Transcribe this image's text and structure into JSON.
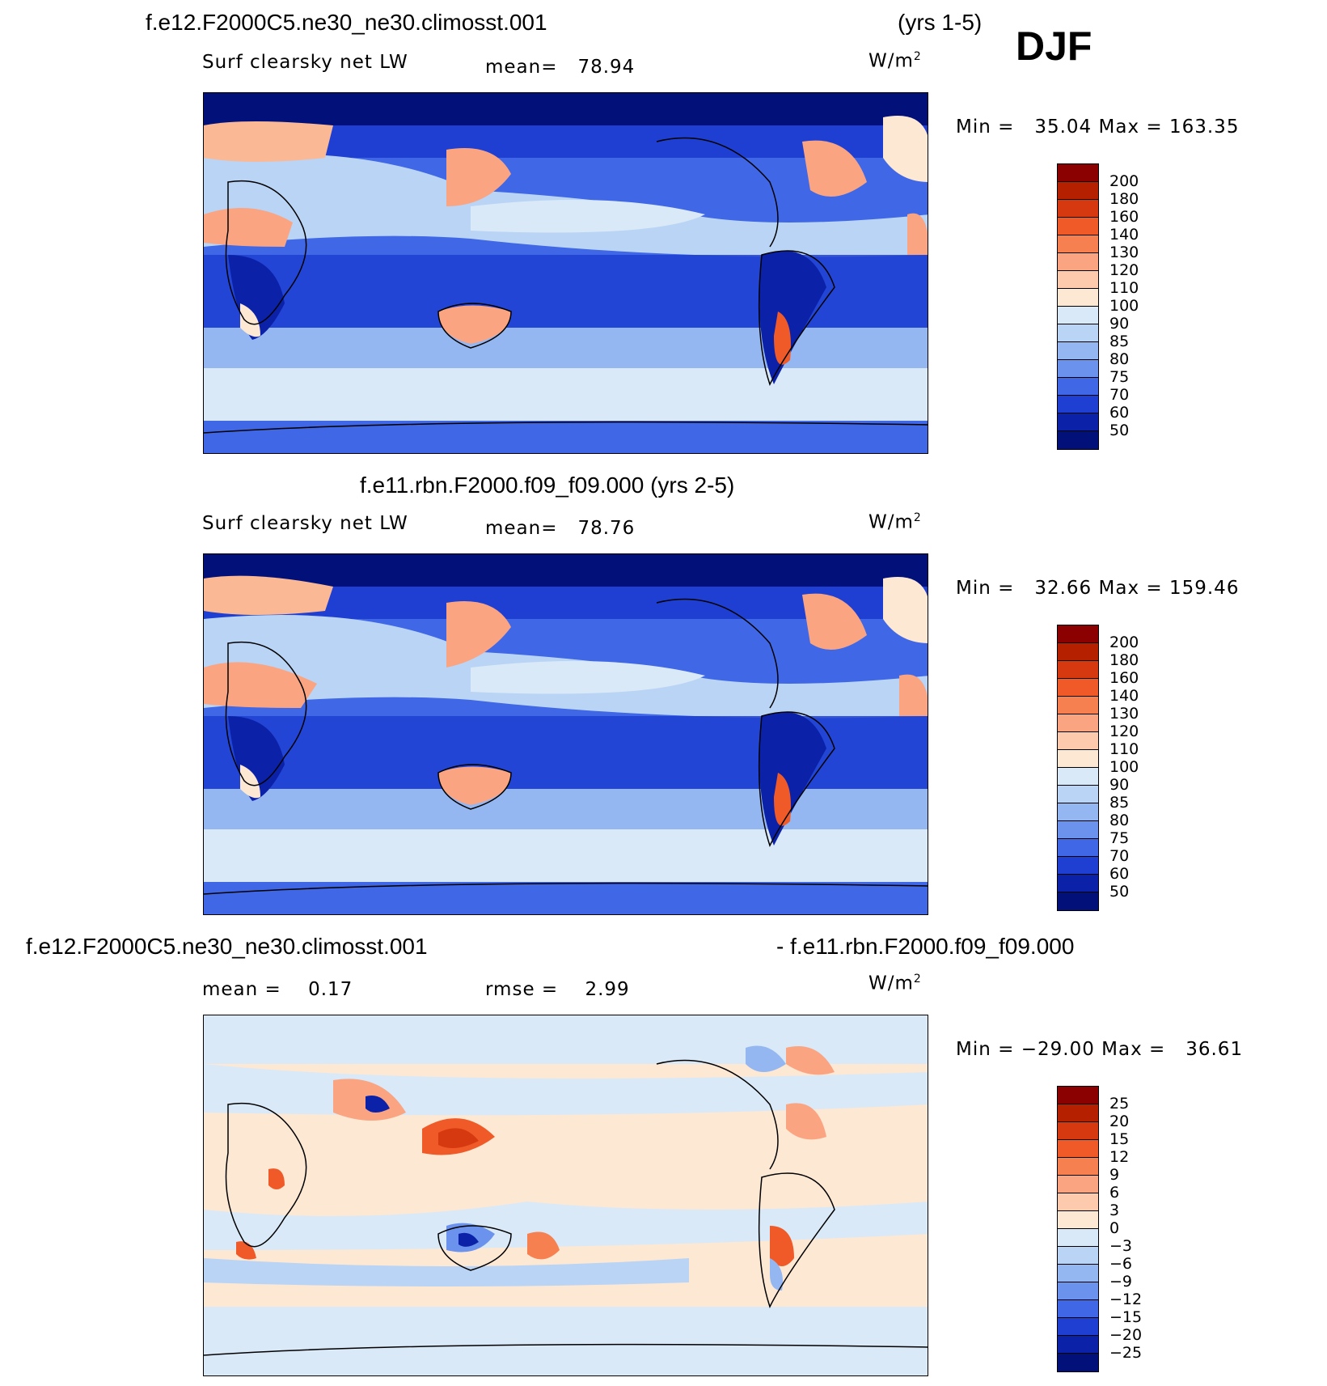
{
  "season": "DJF",
  "panels": [
    {
      "title": "f.e12.F2000C5.ne30_ne30.climosst.001",
      "years": "(yrs 1-5)",
      "variable": "Surf clearsky net LW",
      "stat_label": "mean=",
      "stat_value": "78.94",
      "units": "W/m",
      "units_exp": "2",
      "min_label": "Min =",
      "min_value": "35.04",
      "max_label": "Max =",
      "max_value": "163.35",
      "levels": [
        "200",
        "180",
        "160",
        "140",
        "130",
        "120",
        "110",
        "100",
        "90",
        "85",
        "80",
        "75",
        "70",
        "60",
        "50"
      ],
      "colors": [
        "#8b0000",
        "#b42000",
        "#d63810",
        "#f05a28",
        "#f78050",
        "#fba482",
        "#fdcaae",
        "#fde8d4",
        "#d9e9f8",
        "#b9d4f5",
        "#94b7f2",
        "#6b93ee",
        "#3f67e6",
        "#1e3fd1",
        "#0b22a8",
        "#02107a"
      ]
    },
    {
      "title": "f.e11.rbn.F2000.f09_f09.000 (yrs 2-5)",
      "variable": "Surf clearsky net LW",
      "stat_label": "mean=",
      "stat_value": "78.76",
      "units": "W/m",
      "units_exp": "2",
      "min_label": "Min =",
      "min_value": "32.66",
      "max_label": "Max =",
      "max_value": "159.46",
      "levels": [
        "200",
        "180",
        "160",
        "140",
        "130",
        "120",
        "110",
        "100",
        "90",
        "85",
        "80",
        "75",
        "70",
        "60",
        "50"
      ],
      "colors": [
        "#8b0000",
        "#b42000",
        "#d63810",
        "#f05a28",
        "#f78050",
        "#fba482",
        "#fdcaae",
        "#fde8d4",
        "#d9e9f8",
        "#b9d4f5",
        "#94b7f2",
        "#6b93ee",
        "#3f67e6",
        "#1e3fd1",
        "#0b22a8",
        "#02107a"
      ]
    },
    {
      "title_left": "f.e12.F2000C5.ne30_ne30.climosst.001",
      "title_right": "- f.e11.rbn.F2000.f09_f09.000",
      "stat_label": "mean =",
      "stat_value": "0.17",
      "rmse_label": "rmse =",
      "rmse_value": "2.99",
      "units": "W/m",
      "units_exp": "2",
      "min_label": "Min =",
      "min_value": "−29.00",
      "max_label": "Max =",
      "max_value": "36.61",
      "levels": [
        "25",
        "20",
        "15",
        "12",
        "9",
        "6",
        "3",
        "0",
        "−3",
        "−6",
        "−9",
        "−12",
        "−15",
        "−20",
        "−25"
      ],
      "colors": [
        "#8b0000",
        "#b42000",
        "#d63810",
        "#f05a28",
        "#f78050",
        "#fba482",
        "#fdcaae",
        "#fde8d4",
        "#d9e9f8",
        "#b9d4f5",
        "#94b7f2",
        "#6b93ee",
        "#3f67e6",
        "#1e3fd1",
        "#0b22a8",
        "#02107a"
      ]
    }
  ]
}
